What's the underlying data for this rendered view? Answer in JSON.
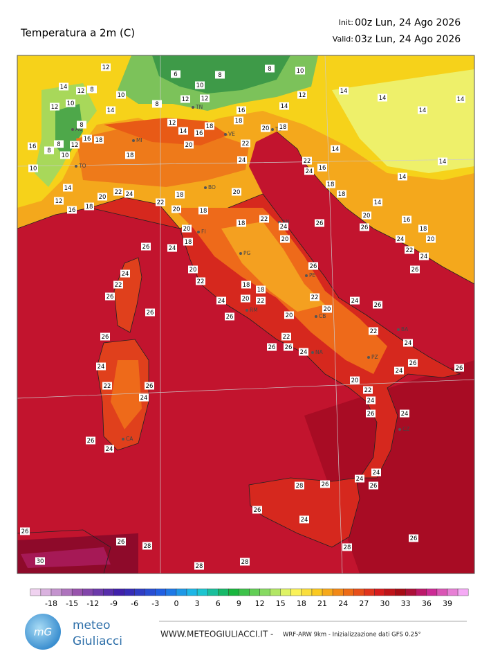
{
  "header": {
    "title": "Temperatura a 2m   (C)",
    "init_label": "Init:",
    "init": "00z Lun, 24 Ago 2026",
    "valid_label": "Valid:",
    "valid": "03z Lun, 24 Ago 2026"
  },
  "map": {
    "cities": [
      "TN",
      "AO",
      "MI",
      "TO",
      "VE",
      "TS",
      "BO",
      "FI",
      "AN",
      "PG",
      "PE",
      "RM",
      "CB",
      "NA",
      "PZ",
      "BA",
      "CZ",
      "CA"
    ],
    "temperature_labels": [
      12,
      6,
      8,
      8,
      10,
      14,
      12,
      8,
      10,
      10,
      8,
      12,
      12,
      10,
      12,
      14,
      16,
      12,
      14,
      14,
      14,
      14,
      14,
      12,
      18,
      18,
      14,
      16,
      8,
      20,
      18,
      16,
      18,
      8,
      16,
      8,
      12,
      20,
      22,
      14,
      14,
      10,
      18,
      10,
      24,
      22,
      16,
      24,
      14,
      22,
      24,
      20,
      18,
      20,
      18,
      18,
      14,
      12,
      16,
      18,
      22,
      18,
      14,
      20,
      16,
      20,
      18,
      22,
      24,
      26,
      18,
      20,
      26,
      18,
      20,
      24,
      20,
      26,
      24,
      22,
      24,
      24,
      20,
      26,
      26,
      22,
      22,
      26,
      18,
      18,
      24,
      20,
      22,
      22,
      24,
      26,
      26,
      26,
      20,
      20,
      22,
      26,
      22,
      26,
      26,
      24,
      24,
      24,
      26,
      24,
      26,
      22,
      26,
      20,
      22,
      24,
      24,
      24,
      26,
      26,
      24,
      24,
      24,
      26,
      28,
      26,
      26,
      24,
      26,
      28,
      26,
      28,
      26,
      30,
      28,
      28
    ]
  },
  "colorbar": {
    "ticks": [
      -18,
      -15,
      -12,
      -9,
      -6,
      -3,
      0,
      3,
      6,
      9,
      12,
      15,
      18,
      21,
      24,
      27,
      30,
      33,
      36,
      39
    ]
  },
  "footer": {
    "logo": "mG",
    "brand_line1": "meteo",
    "brand_line2": "Giuliacci",
    "website": "WWW.METEOGIULIACCI.IT -",
    "model": "WRF-ARW 9km - Inizializzazione dati GFS 0.25°"
  }
}
